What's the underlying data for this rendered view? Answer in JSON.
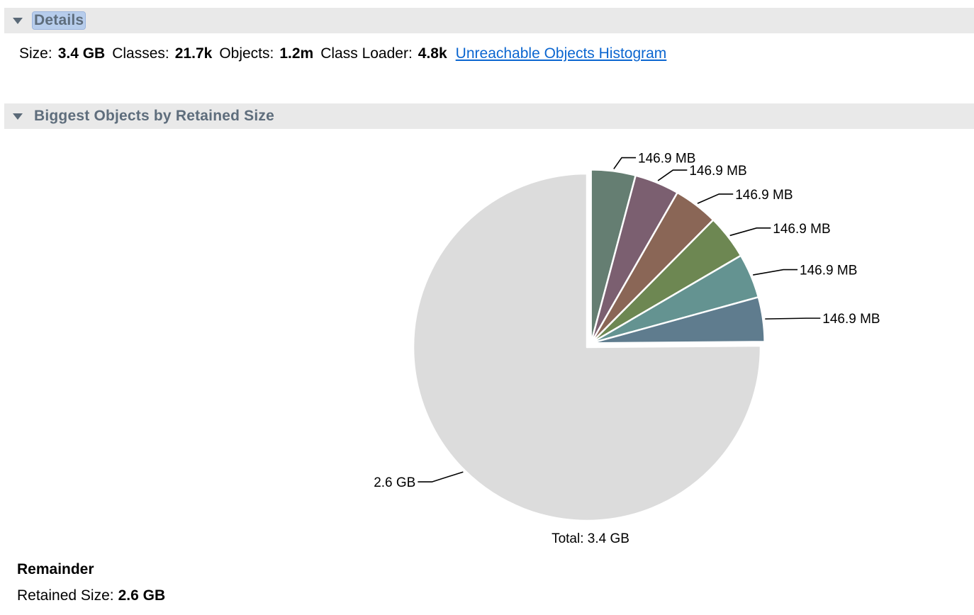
{
  "details": {
    "header": "Details",
    "size_label": "Size:",
    "size_value": "3.4 GB",
    "classes_label": "Classes:",
    "classes_value": "21.7k",
    "objects_label": "Objects:",
    "objects_value": "1.2m",
    "class_loader_label": "Class Loader:",
    "class_loader_value": "4.8k",
    "histogram_link": "Unreachable Objects Histogram"
  },
  "biggest": {
    "header": "Biggest Objects by Retained Size",
    "total_label": "Total: 3.4 GB"
  },
  "chart_data": {
    "type": "pie",
    "unit_note": "values in MB",
    "slices": [
      {
        "label": "146.9 MB",
        "value": 146.9,
        "color": "#657e72"
      },
      {
        "label": "146.9 MB",
        "value": 146.9,
        "color": "#7b5f70"
      },
      {
        "label": "146.9 MB",
        "value": 146.9,
        "color": "#8a6656"
      },
      {
        "label": "146.9 MB",
        "value": 146.9,
        "color": "#6d8752"
      },
      {
        "label": "146.9 MB",
        "value": 146.9,
        "color": "#649391"
      },
      {
        "label": "146.9 MB",
        "value": 146.9,
        "color": "#5f7c8e"
      },
      {
        "label": "2.6 GB",
        "value": 2662.6,
        "color": "#dcdcdc"
      }
    ],
    "exploded_slices": [
      0,
      1,
      2,
      3,
      4,
      5
    ],
    "total_label": "Total: 3.4 GB"
  },
  "remainder": {
    "title": "Remainder",
    "retained_label": "Retained Size:",
    "retained_value": "2.6 GB"
  }
}
